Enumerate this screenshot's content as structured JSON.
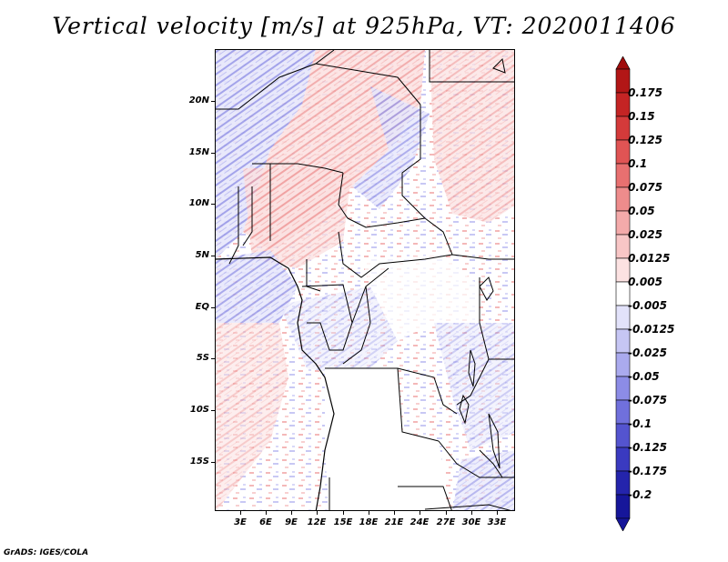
{
  "title": "Vertical velocity [m/s] at 925hPa, VT: 2020011406",
  "footer": "GrADS: IGES/COLA",
  "map": {
    "lat_labels": [
      "20N",
      "15N",
      "10N",
      "5N",
      "EQ",
      "5S",
      "10S",
      "15S"
    ],
    "lon_labels": [
      "3E",
      "6E",
      "9E",
      "12E",
      "15E",
      "18E",
      "21E",
      "24E",
      "27E",
      "30E",
      "33E"
    ]
  },
  "colorbar": {
    "levels": [
      {
        "label": "0.175",
        "color": "#b21616"
      },
      {
        "label": "0.15",
        "color": "#c42424"
      },
      {
        "label": "0.125",
        "color": "#d43a3a"
      },
      {
        "label": "0.1",
        "color": "#e05454"
      },
      {
        "label": "0.075",
        "color": "#e87070"
      },
      {
        "label": "0.05",
        "color": "#ee8c8c"
      },
      {
        "label": "0.025",
        "color": "#f4aaaa"
      },
      {
        "label": "0.0125",
        "color": "#f8c6c6"
      },
      {
        "label": "0.005",
        "color": "#fce2e2"
      },
      {
        "label": "-0.005",
        "color": "#ffffff"
      },
      {
        "label": "-0.0125",
        "color": "#e2e2fa"
      },
      {
        "label": "-0.025",
        "color": "#c6c6f4"
      },
      {
        "label": "-0.05",
        "color": "#aaaaee"
      },
      {
        "label": "-0.075",
        "color": "#8c8ce6"
      },
      {
        "label": "-0.1",
        "color": "#7070dc"
      },
      {
        "label": "-0.125",
        "color": "#5454cf"
      },
      {
        "label": "-0.175",
        "color": "#3a3ac0"
      },
      {
        "label": "-0.2",
        "color": "#2424ac"
      }
    ],
    "top_color": "#a00c0c",
    "bottom_color": "#16169a"
  }
}
